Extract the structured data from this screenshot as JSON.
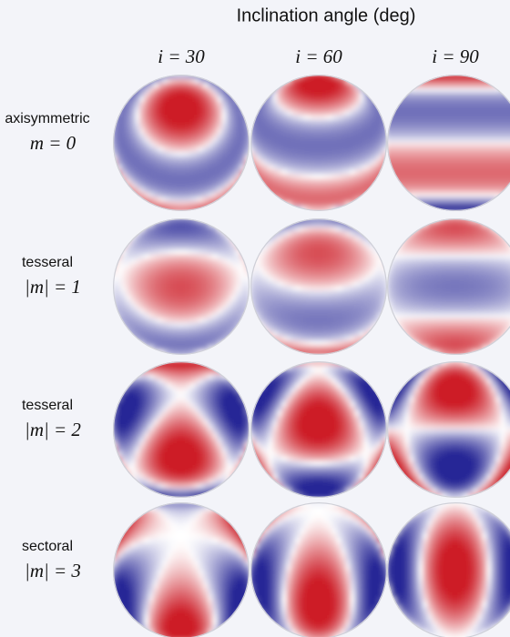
{
  "header": {
    "title": "Inclination angle (deg)"
  },
  "columns": [
    "i = 30",
    "i = 60",
    "i = 90"
  ],
  "rows": [
    {
      "name": "axisymmetric",
      "label": "m = 0"
    },
    {
      "name": "tesseral",
      "label": "|m| = 1"
    },
    {
      "name": "tesseral",
      "label": "|m| = 2"
    },
    {
      "name": "sectoral",
      "label": "|m| = 3"
    }
  ]
}
